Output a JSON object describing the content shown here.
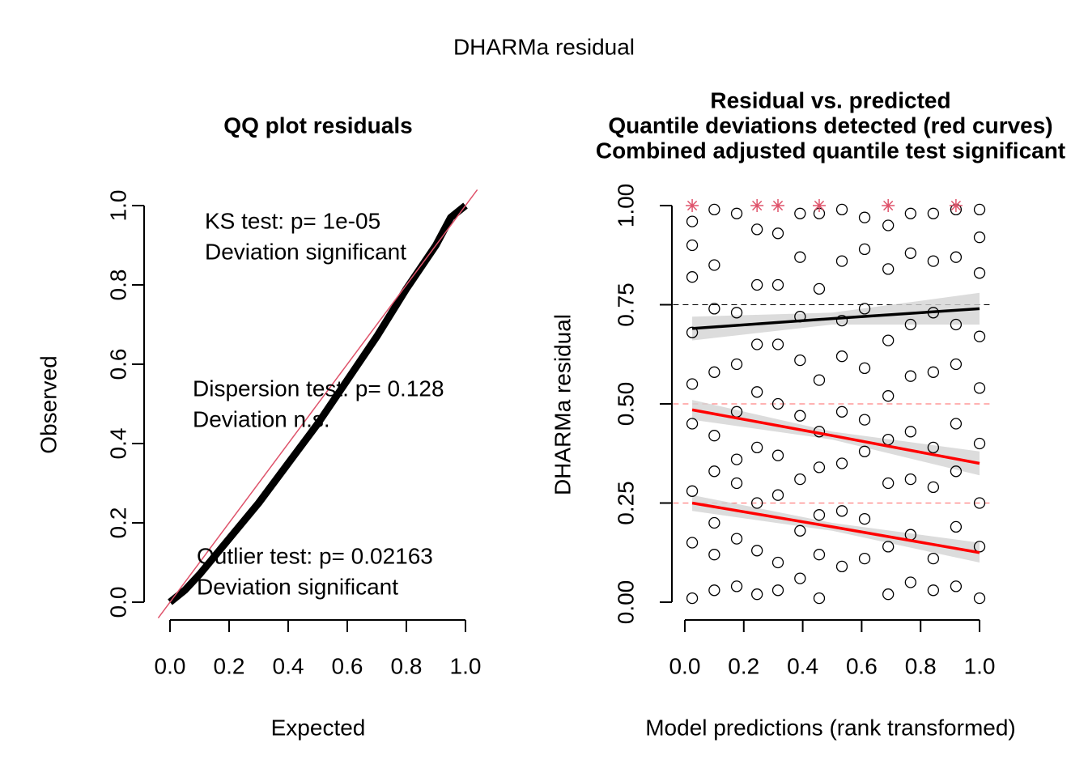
{
  "title": "DHARMa residual",
  "chart_data": [
    {
      "type": "qq",
      "title": "QQ plot residuals",
      "xlabel": "Expected",
      "ylabel": "Observed",
      "xlim": [
        -0.04,
        1.04
      ],
      "ylim": [
        -0.04,
        1.04
      ],
      "xticks": [
        {
          "value": 0,
          "label": "0.0"
        },
        {
          "value": 0.2,
          "label": "0.2"
        },
        {
          "value": 0.4,
          "label": "0.4"
        },
        {
          "value": 0.6,
          "label": "0.6"
        },
        {
          "value": 0.8,
          "label": "0.8"
        },
        {
          "value": 1,
          "label": "1.0"
        }
      ],
      "yticks": [
        {
          "value": 0,
          "label": "0.0"
        },
        {
          "value": 0.2,
          "label": "0.2"
        },
        {
          "value": 0.4,
          "label": "0.4"
        },
        {
          "value": 0.6,
          "label": "0.6"
        },
        {
          "value": 0.8,
          "label": "0.8"
        },
        {
          "value": 1,
          "label": "1.0"
        }
      ],
      "color": "#000000",
      "x": [
        0,
        0.05,
        0.1,
        0.2,
        0.3,
        0.4,
        0.5,
        0.6,
        0.7,
        0.8,
        0.9,
        0.95,
        1
      ],
      "values": [
        0,
        0.03,
        0.07,
        0.16,
        0.25,
        0.35,
        0.45,
        0.56,
        0.67,
        0.79,
        0.9,
        0.97,
        1
      ],
      "abline": [
        0,
        1
      ],
      "abline_color": "#DF536B",
      "annotations": [
        {
          "text": "KS test: p= 1e-05",
          "color": "#FF0000"
        },
        {
          "text": "Deviation  significant",
          "color": "#FF0000"
        },
        {
          "text": "Dispersion test: p= 0.128",
          "color": "#000000"
        },
        {
          "text": "Deviation  n.s.",
          "color": "#000000"
        },
        {
          "text": "Outlier test: p= 0.02163",
          "color": "#FF0000"
        },
        {
          "text": "Deviation  significant",
          "color": "#FF0000"
        }
      ]
    },
    {
      "type": "scatter",
      "title_lines": [
        "Residual vs. predicted",
        "Quantile deviations detected (red curves)",
        "Combined adjusted quantile test significant"
      ],
      "title_color": "#FF0000",
      "xlabel": "Model predictions (rank transformed)",
      "ylabel": "DHARMa residual",
      "xlim": [
        -0.04,
        1.04
      ],
      "ylim": [
        -0.04,
        1.04
      ],
      "xticks": [
        {
          "value": 0,
          "label": "0.0"
        },
        {
          "value": 0.2,
          "label": "0.2"
        },
        {
          "value": 0.4,
          "label": "0.4"
        },
        {
          "value": 0.6,
          "label": "0.6"
        },
        {
          "value": 0.8,
          "label": "0.8"
        },
        {
          "value": 1,
          "label": "1.0"
        }
      ],
      "yticks": [
        {
          "value": 0,
          "label": "0.00"
        },
        {
          "value": 0.25,
          "label": "0.25"
        },
        {
          "value": 0.5,
          "label": "0.50"
        },
        {
          "value": 0.75,
          "label": "0.75"
        },
        {
          "value": 1,
          "label": "1.00"
        }
      ],
      "color": "#000000",
      "x": [
        0.025,
        0.025,
        0.025,
        0.025,
        0.025,
        0.025,
        0.025,
        0.025,
        0.025,
        0.1,
        0.1,
        0.1,
        0.1,
        0.1,
        0.1,
        0.1,
        0.1,
        0.1,
        0.176,
        0.176,
        0.176,
        0.176,
        0.176,
        0.176,
        0.176,
        0.176,
        0.245,
        0.245,
        0.245,
        0.245,
        0.245,
        0.245,
        0.245,
        0.245,
        0.316,
        0.316,
        0.316,
        0.316,
        0.316,
        0.316,
        0.316,
        0.316,
        0.391,
        0.391,
        0.391,
        0.391,
        0.391,
        0.391,
        0.391,
        0.391,
        0.456,
        0.456,
        0.456,
        0.456,
        0.456,
        0.456,
        0.456,
        0.456,
        0.533,
        0.533,
        0.533,
        0.533,
        0.533,
        0.533,
        0.533,
        0.533,
        0.61,
        0.61,
        0.61,
        0.61,
        0.61,
        0.61,
        0.61,
        0.61,
        0.69,
        0.69,
        0.69,
        0.69,
        0.69,
        0.69,
        0.69,
        0.69,
        0.766,
        0.766,
        0.766,
        0.766,
        0.766,
        0.766,
        0.766,
        0.766,
        0.843,
        0.843,
        0.843,
        0.843,
        0.843,
        0.843,
        0.843,
        0.843,
        0.92,
        0.92,
        0.92,
        0.92,
        0.92,
        0.92,
        0.92,
        0.92,
        1,
        1,
        1,
        1,
        1,
        1,
        1,
        1,
        1
      ],
      "values": [
        0.96,
        0.9,
        0.82,
        0.68,
        0.55,
        0.45,
        0.28,
        0.15,
        0.01,
        0.99,
        0.85,
        0.74,
        0.58,
        0.42,
        0.33,
        0.2,
        0.12,
        0.03,
        0.98,
        0.73,
        0.6,
        0.48,
        0.36,
        0.3,
        0.16,
        0.04,
        0.94,
        0.8,
        0.65,
        0.53,
        0.39,
        0.25,
        0.13,
        0.02,
        0.93,
        0.8,
        0.65,
        0.5,
        0.37,
        0.27,
        0.1,
        0.03,
        0.98,
        0.87,
        0.72,
        0.61,
        0.47,
        0.31,
        0.18,
        0.06,
        0.98,
        0.79,
        0.56,
        0.43,
        0.34,
        0.22,
        0.12,
        0.01,
        0.99,
        0.86,
        0.71,
        0.62,
        0.48,
        0.35,
        0.23,
        0.09,
        0.97,
        0.89,
        0.74,
        0.59,
        0.46,
        0.38,
        0.21,
        0.11,
        0.95,
        0.84,
        0.66,
        0.52,
        0.41,
        0.3,
        0.14,
        0.02,
        0.98,
        0.88,
        0.7,
        0.57,
        0.43,
        0.31,
        0.17,
        0.05,
        0.98,
        0.86,
        0.73,
        0.58,
        0.39,
        0.29,
        0.11,
        0.03,
        0.99,
        0.87,
        0.7,
        0.6,
        0.45,
        0.33,
        0.19,
        0.04,
        0.99,
        0.92,
        0.83,
        0.67,
        0.54,
        0.4,
        0.25,
        0.14,
        0.01
      ],
      "outlier_color": "#DF536B",
      "outlier_x": [
        0.025,
        0.245,
        0.316,
        0.456,
        0.69,
        0.92
      ],
      "outlier_values": [
        1,
        1,
        1,
        1,
        1,
        1
      ],
      "quantiles": [
        {
          "value": 0.25,
          "color": "#FF0000"
        },
        {
          "value": 0.5,
          "color": "#FF0000"
        },
        {
          "value": 0.75,
          "color": "#000000"
        }
      ],
      "band_color": "#D3D3D3",
      "lines": [
        {
          "color": "#FF0000",
          "x": [
            0.025,
            0.5,
            1
          ],
          "values": [
            0.25,
            0.19,
            0.125
          ],
          "lower": [
            0.23,
            0.18,
            0.1
          ],
          "upper": [
            0.27,
            0.2,
            0.15
          ]
        },
        {
          "color": "#FF0000",
          "x": [
            0.025,
            0.5,
            1
          ],
          "values": [
            0.485,
            0.42,
            0.35
          ],
          "lower": [
            0.46,
            0.41,
            0.32
          ],
          "upper": [
            0.51,
            0.43,
            0.38
          ]
        },
        {
          "color": "#000000",
          "x": [
            0.025,
            0.5,
            1
          ],
          "values": [
            0.69,
            0.715,
            0.74
          ],
          "lower": [
            0.66,
            0.7,
            0.7
          ],
          "upper": [
            0.72,
            0.73,
            0.78
          ]
        }
      ]
    }
  ]
}
